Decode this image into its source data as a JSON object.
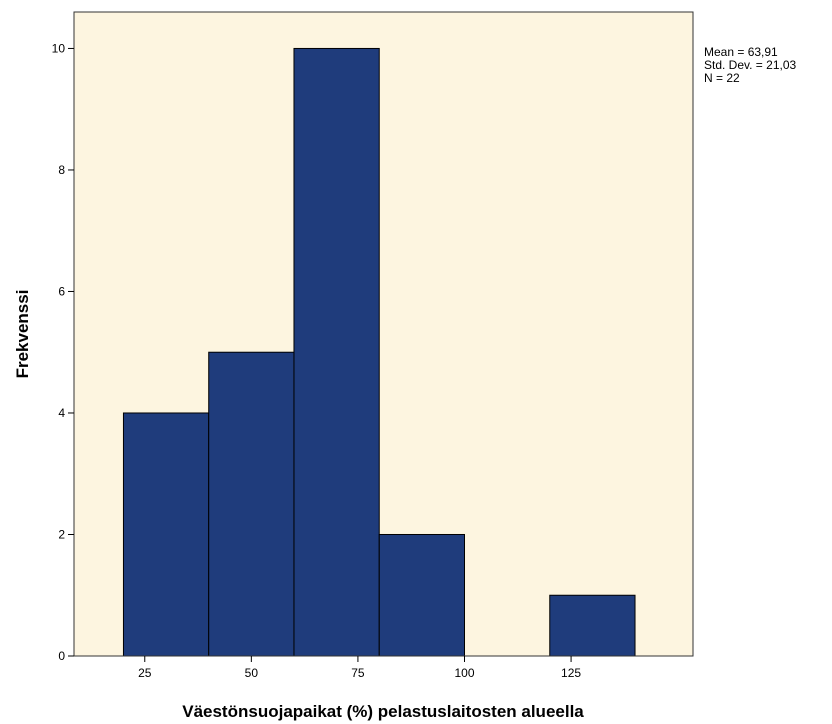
{
  "chart_data": {
    "type": "bar",
    "subtype": "histogram",
    "bins": [
      {
        "start": 20,
        "end": 40,
        "count": 4
      },
      {
        "start": 40,
        "end": 60,
        "count": 5
      },
      {
        "start": 60,
        "end": 80,
        "count": 10
      },
      {
        "start": 80,
        "end": 100,
        "count": 2
      },
      {
        "start": 100,
        "end": 120,
        "count": 0
      },
      {
        "start": 120,
        "end": 140,
        "count": 1
      }
    ],
    "xlabel": "Väestönsuojapaikat (%) pelastuslaitosten alueella",
    "ylabel": "Frekvenssi",
    "xlim": [
      8.4,
      153.6
    ],
    "ylim": [
      0,
      10.6
    ],
    "xticks": [
      25,
      50,
      75,
      100,
      125
    ],
    "yticks": [
      0,
      2,
      4,
      6,
      8,
      10
    ],
    "grid": false,
    "legend": "none",
    "stats": [
      "Mean = 63,91",
      "Std. Dev. = 21,03",
      "N = 22"
    ],
    "colors": {
      "plot_background": "#fdf5e0",
      "bar_fill": "#1f3c7c",
      "bar_stroke": "#000000",
      "frame": "#333333"
    }
  }
}
